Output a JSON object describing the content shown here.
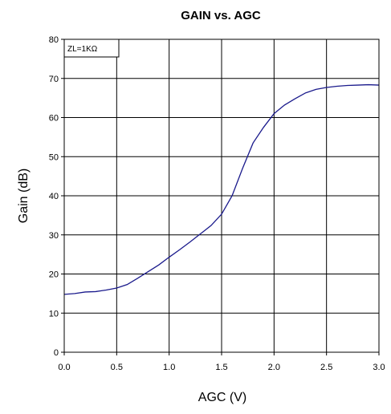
{
  "chart_data": {
    "type": "line",
    "title": "GAIN vs. AGC",
    "xlabel": "AGC (V)",
    "ylabel": "Gain (dB)",
    "xlim": [
      0,
      3
    ],
    "ylim": [
      0,
      80
    ],
    "xticks": [
      "0.0",
      "0.5",
      "1.0",
      "1.5",
      "2.0",
      "2.5",
      "3.0"
    ],
    "yticks": [
      "0",
      "10",
      "20",
      "30",
      "40",
      "50",
      "60",
      "70",
      "80"
    ],
    "grid": true,
    "annotation": "ZL=1KΩ",
    "series": [
      {
        "x": [
          0.0,
          0.1,
          0.2,
          0.3,
          0.4,
          0.5,
          0.6,
          0.7,
          0.8,
          0.9,
          1.0,
          1.1,
          1.2,
          1.3,
          1.4,
          1.5,
          1.6,
          1.7,
          1.8,
          1.9,
          2.0,
          2.1,
          2.2,
          2.3,
          2.4,
          2.5,
          2.6,
          2.7,
          2.8,
          2.9,
          3.0
        ],
        "y": [
          14.8,
          15.0,
          15.4,
          15.5,
          15.9,
          16.4,
          17.3,
          18.9,
          20.6,
          22.3,
          24.3,
          26.2,
          28.2,
          30.3,
          32.4,
          35.3,
          40.0,
          47.0,
          53.5,
          57.5,
          61.0,
          63.2,
          64.8,
          66.3,
          67.2,
          67.7,
          68.0,
          68.2,
          68.3,
          68.4,
          68.3
        ]
      }
    ]
  }
}
